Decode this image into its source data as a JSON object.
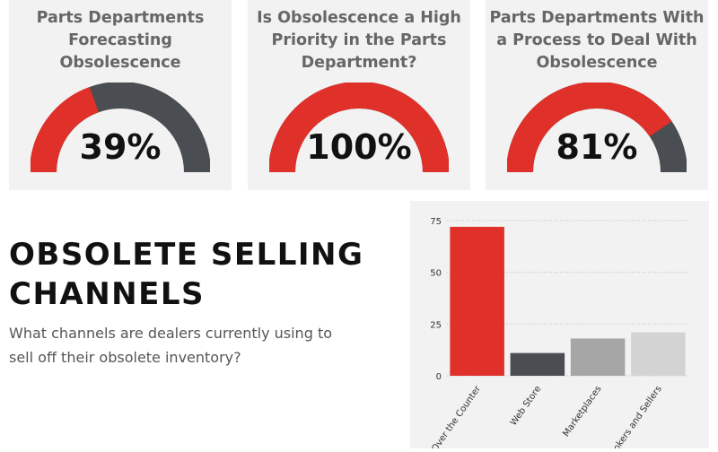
{
  "gauges": [
    {
      "title": "Parts Departments\nForecasting\nObsolescence",
      "value": 39,
      "label": "39%"
    },
    {
      "title": "Is Obsolescence a High\nPriority in the Parts\nDepartment?",
      "value": 100,
      "label": "100%"
    },
    {
      "title": "Parts Departments With\na Process to Deal With\nObsolescence",
      "value": 81,
      "label": "81%"
    }
  ],
  "colors": {
    "accent": "#e0302a",
    "dark": "#4a4d52",
    "medium": "#a6a6a6",
    "light": "#d3d3d3",
    "panel": "#f2f2f2"
  },
  "section": {
    "heading": "OBSOLETE SELLING\nCHANNELS",
    "subtitle": "What channels are dealers currently using to sell off their obsolete inventory?"
  },
  "chart_data": {
    "type": "bar",
    "categories": [
      "Over the Counter",
      "Web Store",
      "Marketplaces",
      "Brokers and Sellers"
    ],
    "values": [
      72,
      11,
      18,
      21
    ],
    "colors": [
      "#e0302a",
      "#4a4d52",
      "#a6a6a6",
      "#d3d3d3"
    ],
    "yticks": [
      0,
      25,
      50,
      75
    ],
    "ylim": [
      0,
      75
    ],
    "grid": true
  }
}
